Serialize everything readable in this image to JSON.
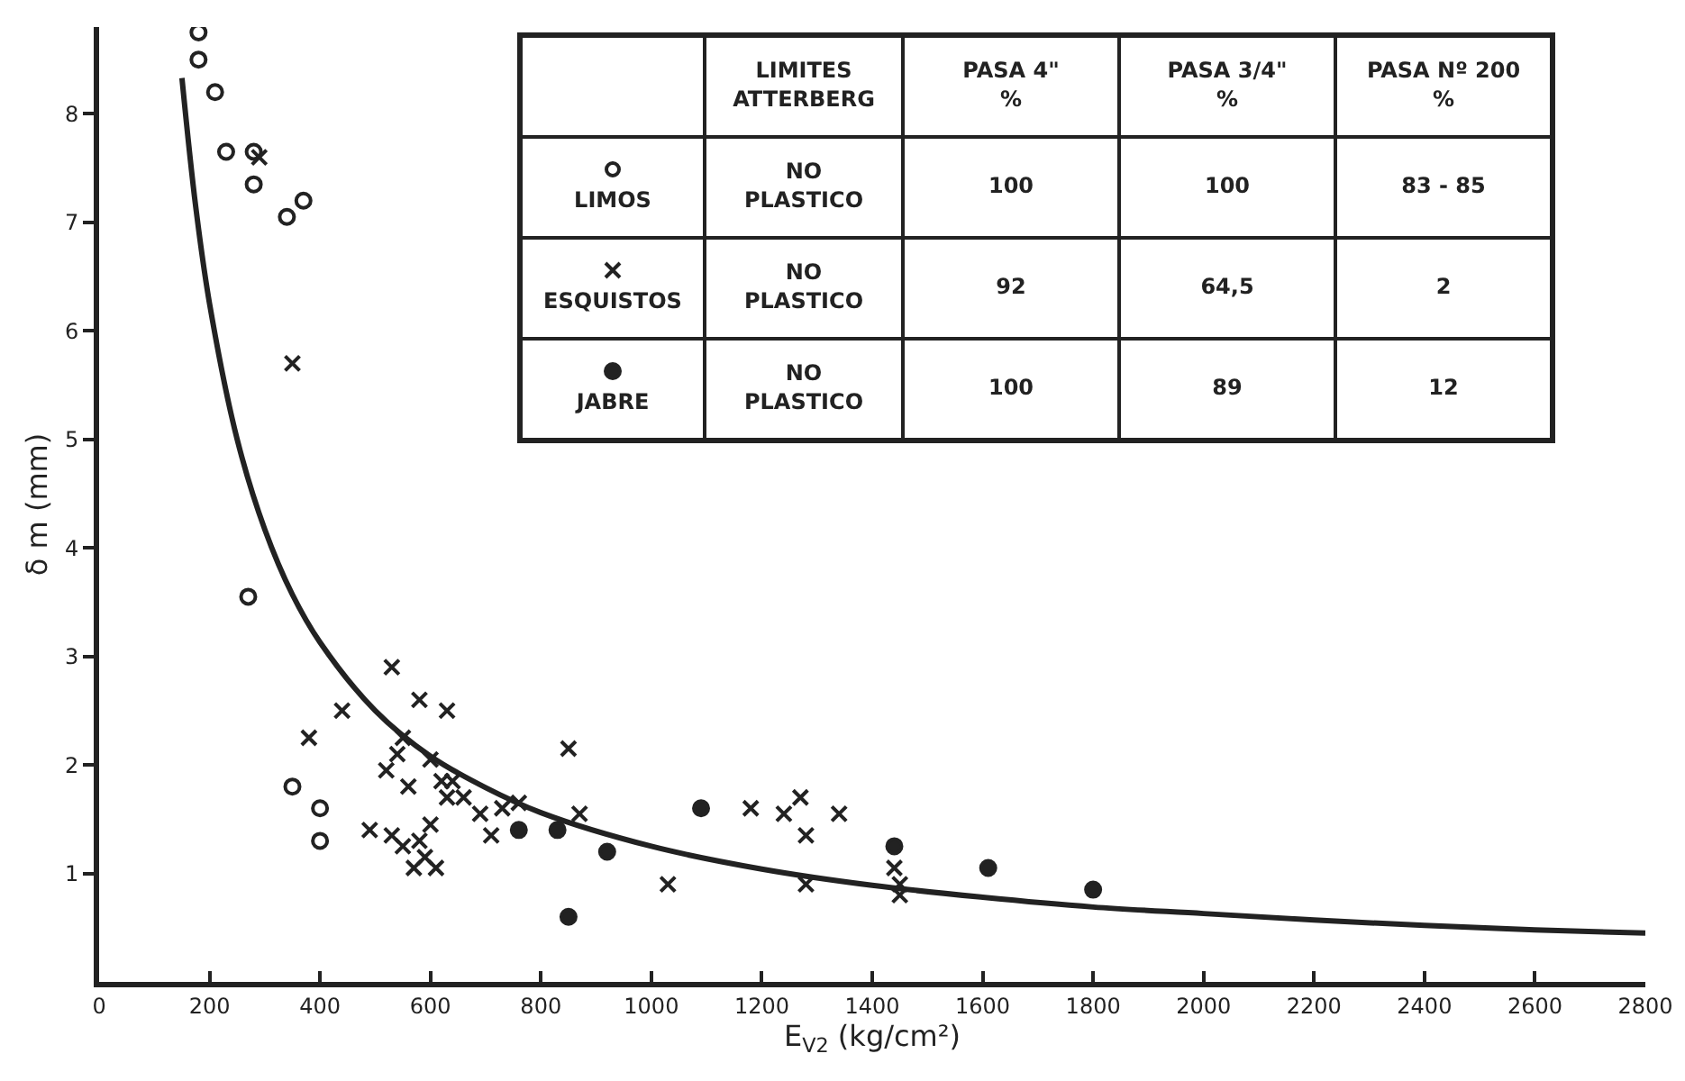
{
  "chart_data": {
    "type": "scatter",
    "xlabel": "E$_{V2}$ (kg/cm²)",
    "ylabel": "δ m (mm)",
    "xlim": [
      0,
      2800
    ],
    "xticks": [
      0,
      200,
      400,
      600,
      800,
      1000,
      1200,
      1400,
      1600,
      1800,
      2000,
      2200,
      2400,
      2600,
      2800
    ],
    "ylim": [
      0,
      8.8
    ],
    "yticks": [
      1,
      2,
      3,
      4,
      5,
      6,
      7,
      8
    ],
    "grid": false,
    "legend": "top",
    "annotations": [
      "LIMITES\nATTERBERG",
      "PASA 4\"\n%",
      "PASA 3/4\"\n%",
      "PASA Nº 200\n%",
      "NO\nPLASTICO",
      "100",
      "100",
      "83 - 85",
      "NO\nPLASTICO",
      "92",
      "64,5",
      "2",
      "NO\nPLASTICO",
      "100",
      "89",
      "12"
    ],
    "series": [
      {
        "name": "LIMOS",
        "color": "#222222",
        "marker": "circle-open",
        "x": [
          180,
          180,
          210,
          230,
          280,
          280,
          340,
          370,
          270,
          350,
          400,
          400
        ],
        "values": [
          8.75,
          8.5,
          8.2,
          7.65,
          7.65,
          7.35,
          7.05,
          7.2,
          3.55,
          1.8,
          1.6,
          1.3
        ]
      },
      {
        "name": "ESQUISTOS",
        "color": "#222222",
        "marker": "cross",
        "x": [
          290,
          350,
          380,
          440,
          530,
          580,
          630,
          520,
          540,
          550,
          560,
          600,
          620,
          630,
          640,
          600,
          580,
          490,
          530,
          550,
          570,
          590,
          610,
          660,
          690,
          710,
          730,
          760,
          850,
          870,
          1030,
          1180,
          1240,
          1270,
          1280,
          1340,
          1280,
          1440,
          1450,
          1450
        ],
        "values": [
          7.6,
          5.7,
          2.25,
          2.5,
          2.9,
          2.6,
          2.5,
          1.95,
          2.1,
          2.25,
          1.8,
          2.05,
          1.85,
          1.7,
          1.85,
          1.45,
          1.3,
          1.4,
          1.35,
          1.25,
          1.05,
          1.15,
          1.05,
          1.7,
          1.55,
          1.35,
          1.6,
          1.65,
          2.15,
          1.55,
          0.9,
          1.6,
          1.55,
          1.7,
          1.35,
          1.55,
          0.9,
          1.05,
          0.9,
          0.8
        ]
      },
      {
        "name": "JABRE",
        "color": "#222222",
        "marker": "circle",
        "x": [
          760,
          830,
          850,
          920,
          1090,
          1440,
          1610,
          1800
        ],
        "values": [
          1.4,
          1.4,
          0.6,
          1.2,
          1.6,
          1.25,
          1.05,
          0.85
        ]
      },
      {
        "type": "line",
        "color": "#222222",
        "marker": "none",
        "x": [
          150,
          175,
          200,
          250,
          300,
          350,
          400,
          500,
          600,
          700,
          800,
          1000,
          1200,
          1400,
          1600,
          1800,
          2000,
          2200,
          2400,
          2600,
          2800
        ],
        "values": [
          8.33,
          7.14,
          6.25,
          5.0,
          4.17,
          3.57,
          3.13,
          2.5,
          2.08,
          1.79,
          1.56,
          1.25,
          1.04,
          0.89,
          0.78,
          0.69,
          0.63,
          0.57,
          0.52,
          0.48,
          0.45
        ]
      }
    ]
  }
}
